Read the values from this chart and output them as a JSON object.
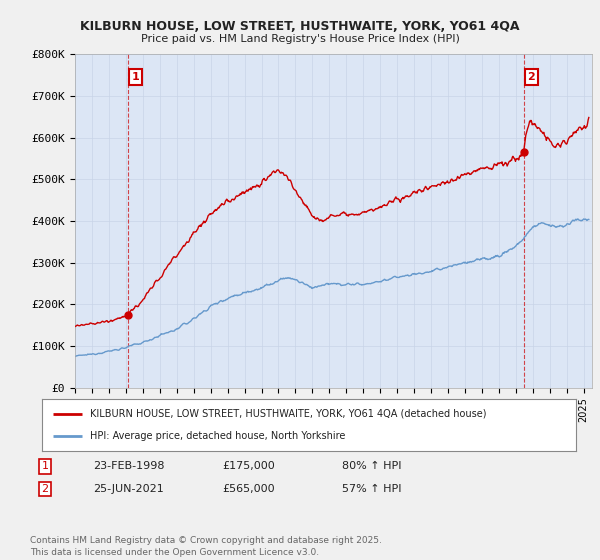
{
  "title_line1": "KILBURN HOUSE, LOW STREET, HUSTHWAITE, YORK, YO61 4QA",
  "title_line2": "Price paid vs. HM Land Registry's House Price Index (HPI)",
  "ylabel_ticks": [
    "£0",
    "£100K",
    "£200K",
    "£300K",
    "£400K",
    "£500K",
    "£600K",
    "£700K",
    "£800K"
  ],
  "ytick_values": [
    0,
    100000,
    200000,
    300000,
    400000,
    500000,
    600000,
    700000,
    800000
  ],
  "ylim": [
    0,
    800000
  ],
  "xlim_start": 1995.0,
  "xlim_end": 2025.5,
  "house_color": "#cc0000",
  "hpi_color": "#6699cc",
  "marker1_year": 1998.13,
  "marker1_value": 175000,
  "marker2_year": 2021.48,
  "marker2_value": 565000,
  "legend_house": "KILBURN HOUSE, LOW STREET, HUSTHWAITE, YORK, YO61 4QA (detached house)",
  "legend_hpi": "HPI: Average price, detached house, North Yorkshire",
  "annotation1_date": "23-FEB-1998",
  "annotation1_price": "£175,000",
  "annotation1_hpi": "80% ↑ HPI",
  "annotation2_date": "25-JUN-2021",
  "annotation2_price": "£565,000",
  "annotation2_hpi": "57% ↑ HPI",
  "footer": "Contains HM Land Registry data © Crown copyright and database right 2025.\nThis data is licensed under the Open Government Licence v3.0.",
  "background_color": "#f0f0f0",
  "plot_background": "#dce6f5"
}
